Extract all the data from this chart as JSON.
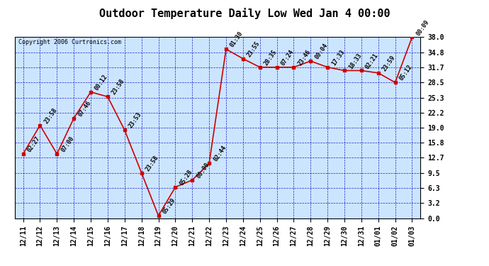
{
  "title": "Outdoor Temperature Daily Low Wed Jan 4 00:00",
  "copyright": "Copyright 2006 Curtronics.com",
  "x_labels": [
    "12/11",
    "12/12",
    "12/13",
    "12/14",
    "12/15",
    "12/16",
    "12/17",
    "12/18",
    "12/19",
    "12/20",
    "12/21",
    "12/22",
    "12/23",
    "12/24",
    "12/25",
    "12/26",
    "12/27",
    "12/28",
    "12/29",
    "12/30",
    "12/31",
    "01/01",
    "01/02",
    "01/03"
  ],
  "y_values": [
    13.5,
    19.5,
    13.5,
    21.0,
    26.5,
    25.5,
    18.5,
    9.5,
    0.5,
    6.5,
    8.0,
    11.5,
    35.5,
    33.5,
    31.7,
    31.7,
    31.7,
    33.0,
    31.7,
    31.0,
    31.0,
    30.5,
    28.5,
    38.0
  ],
  "point_labels": [
    "02:27",
    "23:58",
    "07:00",
    "07:46",
    "00:12",
    "23:58",
    "23:53",
    "23:58",
    "05:29",
    "05:28",
    "00:00",
    "02:44",
    "01:30",
    "23:55",
    "28:35",
    "07:24",
    "23:46",
    "00:04",
    "17:33",
    "18:33",
    "02:21",
    "23:59",
    "05:12",
    "00:09"
  ],
  "ylim": [
    0.0,
    38.0
  ],
  "yticks": [
    0.0,
    3.2,
    6.3,
    9.5,
    12.7,
    15.8,
    19.0,
    22.2,
    25.3,
    28.5,
    31.7,
    34.8,
    38.0
  ],
  "line_color": "#cc0000",
  "marker_color": "#cc0000",
  "bg_color": "#ffffff",
  "plot_bg_color": "#cce5ff",
  "grid_color": "#0000bb",
  "title_fontsize": 11,
  "tick_fontsize": 7,
  "annot_fontsize": 6
}
